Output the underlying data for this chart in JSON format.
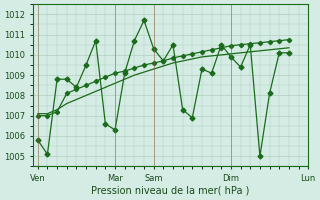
{
  "title": "",
  "xlabel": "Pression niveau de la mer( hPa )",
  "ylabel": "",
  "bg_color": "#d4ece4",
  "grid_color": "#b0cfc0",
  "line_color": "#1a6b1a",
  "marker_color": "#1a6b1a",
  "ylim": [
    1004.5,
    1012.5
  ],
  "yticks": [
    1005,
    1006,
    1007,
    1008,
    1009,
    1010,
    1011,
    1012
  ],
  "day_labels": [
    "Ven",
    "Mar",
    "Sam",
    "Dim",
    "Lun"
  ],
  "day_positions": [
    0,
    8,
    12,
    20,
    28
  ],
  "series1": [
    1005.8,
    1005.1,
    1008.8,
    1008.8,
    1008.4,
    1009.5,
    1010.7,
    1006.6,
    1006.3,
    1009.1,
    1010.7,
    1011.7,
    1010.3,
    1009.7,
    1010.5,
    1007.3,
    1006.9,
    1009.3,
    1009.1,
    1010.5,
    1009.9,
    1009.4,
    1010.5,
    1005.0,
    1008.1,
    1010.1,
    1010.1
  ],
  "series2": [
    1007.0,
    1007.0,
    1007.2,
    1008.1,
    1008.3,
    1008.5,
    1008.7,
    1008.9,
    1009.1,
    1009.2,
    1009.35,
    1009.5,
    1009.6,
    1009.7,
    1009.85,
    1009.95,
    1010.05,
    1010.15,
    1010.25,
    1010.35,
    1010.45,
    1010.5,
    1010.55,
    1010.6,
    1010.65,
    1010.7,
    1010.75
  ],
  "series3": [
    1007.1,
    1007.1,
    1007.3,
    1007.6,
    1007.8,
    1008.0,
    1008.2,
    1008.4,
    1008.6,
    1008.8,
    1009.0,
    1009.15,
    1009.3,
    1009.45,
    1009.6,
    1009.7,
    1009.8,
    1009.9,
    1009.95,
    1010.0,
    1010.05,
    1010.1,
    1010.15,
    1010.2,
    1010.25,
    1010.3,
    1010.35
  ]
}
